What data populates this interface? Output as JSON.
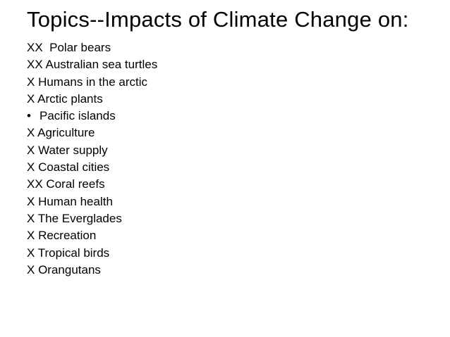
{
  "slide": {
    "title": "Topics--Impacts of Climate Change on:",
    "topics": [
      {
        "marker": "XX",
        "text": "Polar bears"
      },
      {
        "marker": "XX",
        "text": "Australian sea turtles"
      },
      {
        "marker": "X",
        "text": "Humans in the arctic"
      },
      {
        "marker": "X",
        "text": "Arctic plants"
      },
      {
        "marker": "•",
        "text": "Pacific islands"
      },
      {
        "marker": "X",
        "text": "Agriculture"
      },
      {
        "marker": "X",
        "text": "Water supply"
      },
      {
        "marker": "X",
        "text": "Coastal cities"
      },
      {
        "marker": "XX",
        "text": "Coral reefs"
      },
      {
        "marker": "X",
        "text": "Human health"
      },
      {
        "marker": "X",
        "text": "The Everglades"
      },
      {
        "marker": "X",
        "text": "Recreation"
      },
      {
        "marker": "X",
        "text": "Tropical birds"
      },
      {
        "marker": "X",
        "text": "Orangutans"
      }
    ]
  }
}
